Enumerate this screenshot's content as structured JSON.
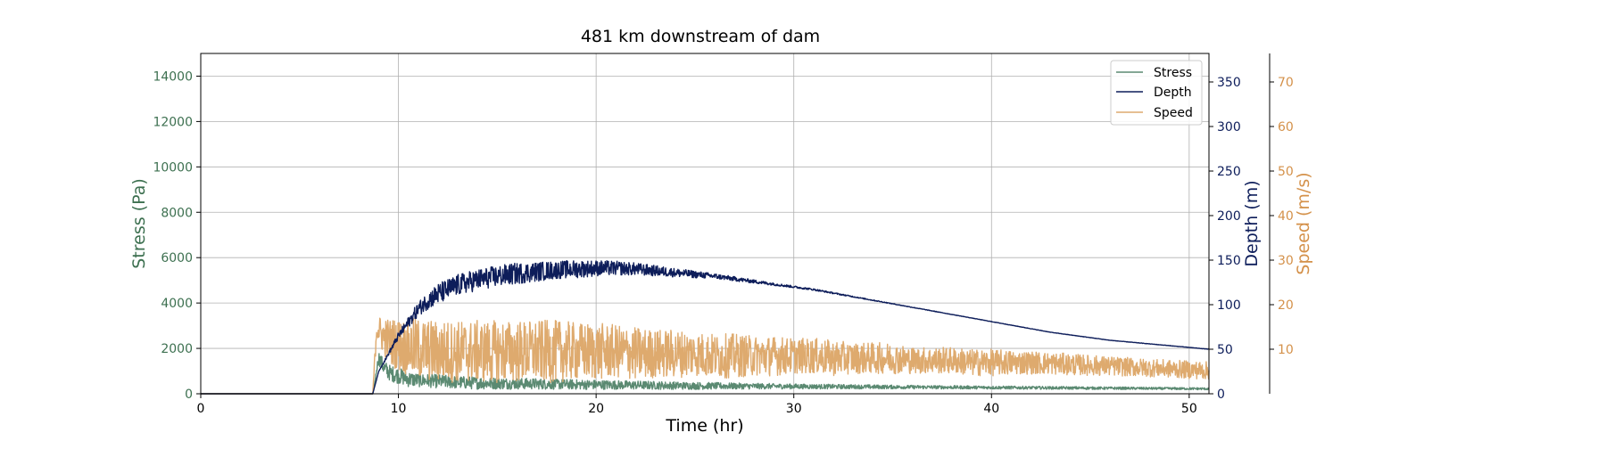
{
  "chart_data": {
    "type": "line",
    "title": "481 km downstream of dam",
    "xlabel": "Time (hr)",
    "xlim": [
      0,
      51
    ],
    "x_ticks": [
      0,
      10,
      20,
      30,
      40,
      50
    ],
    "grid": true,
    "legend_position": "top-right",
    "axes": [
      {
        "id": "stress",
        "label": "Stress (Pa)",
        "side": "left",
        "color": "#3d7050",
        "ylim": [
          0,
          15000
        ],
        "ticks": [
          0,
          2000,
          4000,
          6000,
          8000,
          10000,
          12000,
          14000
        ]
      },
      {
        "id": "depth",
        "label": "Depth (m)",
        "side": "right",
        "color": "#0d1d5a",
        "ylim": [
          0,
          382
        ],
        "ticks": [
          0,
          50,
          100,
          150,
          200,
          250,
          300,
          350
        ]
      },
      {
        "id": "speed",
        "label": "Speed (m/s)",
        "side": "right-outer",
        "color": "#d4914a",
        "ylim": [
          0,
          76.4
        ],
        "ticks": [
          10,
          20,
          30,
          40,
          50,
          60,
          70
        ]
      }
    ],
    "series": [
      {
        "name": "Stress",
        "axis": "stress",
        "color": "#5b8a72",
        "x": [
          0,
          8.7,
          8.8,
          9,
          9.3,
          9.6,
          10,
          10.5,
          11,
          12,
          13,
          14,
          15,
          16,
          17,
          18,
          19,
          20,
          21,
          22,
          23,
          24,
          25,
          26,
          27,
          28,
          29,
          30,
          31,
          32,
          33,
          34,
          35,
          36,
          37,
          38,
          39,
          40,
          41,
          42,
          43,
          44,
          45,
          46,
          47,
          48,
          49,
          50,
          51
        ],
        "y": [
          0,
          0,
          500,
          1600,
          1100,
          900,
          800,
          650,
          600,
          550,
          500,
          480,
          460,
          450,
          440,
          420,
          410,
          400,
          390,
          380,
          370,
          360,
          350,
          345,
          340,
          335,
          330,
          325,
          320,
          315,
          310,
          305,
          300,
          295,
          290,
          285,
          280,
          275,
          270,
          265,
          260,
          255,
          250,
          245,
          240,
          235,
          230,
          225,
          220
        ],
        "noise": [
          0,
          0,
          0,
          300,
          350,
          350,
          350,
          350,
          300,
          300,
          280,
          280,
          260,
          250,
          240,
          230,
          220,
          210,
          200,
          190,
          180,
          170,
          160,
          150,
          140,
          130,
          120,
          110,
          105,
          100,
          95,
          90,
          85,
          80,
          78,
          75,
          72,
          70,
          68,
          66,
          64,
          62,
          60,
          58,
          56,
          54,
          52,
          50,
          50
        ]
      },
      {
        "name": "Depth",
        "axis": "depth",
        "color": "#0d1d5a",
        "x": [
          0,
          8.7,
          9,
          9.5,
          10,
          10.5,
          11,
          11.5,
          12,
          13,
          14,
          15,
          16,
          17,
          18,
          19,
          20,
          21,
          22,
          23,
          24,
          25,
          26,
          27,
          28,
          29,
          30,
          31,
          32,
          33,
          34,
          35,
          36,
          37,
          38,
          39,
          40,
          41,
          42,
          43,
          44,
          45,
          46,
          47,
          48,
          49,
          50,
          51
        ],
        "y": [
          0,
          0,
          25,
          45,
          65,
          80,
          95,
          105,
          112,
          122,
          128,
          132,
          135,
          137,
          139,
          140,
          141,
          141,
          140,
          138,
          136,
          134,
          132,
          129,
          126,
          123,
          120,
          117,
          113,
          109,
          105,
          101,
          97,
          93,
          89,
          85,
          81,
          77,
          73,
          69,
          66,
          63,
          60,
          58,
          56,
          54,
          52,
          50
        ],
        "noise": [
          0,
          0,
          0,
          2,
          4,
          6,
          8,
          10,
          12,
          12,
          12,
          12,
          12,
          11,
          10,
          10,
          9,
          8,
          7,
          6,
          5,
          4,
          3,
          2.5,
          2,
          1.5,
          1.2,
          1,
          0.8,
          0.6,
          0.5,
          0.4,
          0.3,
          0.3,
          0.2,
          0.2,
          0.2,
          0.2,
          0.2,
          0.2,
          0.2,
          0.2,
          0.2,
          0.2,
          0.2,
          0.2,
          0.2,
          0.2
        ]
      },
      {
        "name": "Speed",
        "axis": "speed",
        "color": "#deaa6e",
        "x": [
          0,
          8.7,
          8.9,
          9.2,
          9.5,
          10,
          11,
          12,
          13,
          14,
          15,
          16,
          17,
          18,
          19,
          20,
          21,
          22,
          23,
          24,
          25,
          26,
          27,
          28,
          29,
          30,
          31,
          32,
          33,
          34,
          35,
          36,
          37,
          38,
          39,
          40,
          41,
          42,
          43,
          44,
          45,
          46,
          47,
          48,
          49,
          50,
          51
        ],
        "y": [
          0,
          0,
          15,
          13,
          12,
          11,
          10,
          9.5,
          9.5,
          9.5,
          9.5,
          9.5,
          9.5,
          9.5,
          9.5,
          9.5,
          9.5,
          9,
          9,
          9,
          9,
          8.5,
          8.5,
          8.5,
          8.5,
          8.5,
          8.5,
          8,
          8,
          8,
          8,
          7.5,
          7.5,
          7.5,
          7,
          7,
          7,
          7,
          6.8,
          6.6,
          6.4,
          6.2,
          6,
          5.8,
          5.6,
          5.4,
          5.2
        ],
        "noise": [
          0,
          0,
          3,
          4,
          5,
          6,
          7,
          7,
          7,
          7,
          7,
          7,
          7,
          7,
          6.5,
          6.5,
          6,
          6,
          5.5,
          5.5,
          5,
          5,
          5,
          4.5,
          4.5,
          4,
          4,
          4,
          3.5,
          3.5,
          3.5,
          3,
          3,
          3,
          3,
          3,
          2.8,
          2.6,
          2.5,
          2.4,
          2.3,
          2.2,
          2.1,
          2,
          2,
          2,
          2
        ]
      }
    ]
  }
}
